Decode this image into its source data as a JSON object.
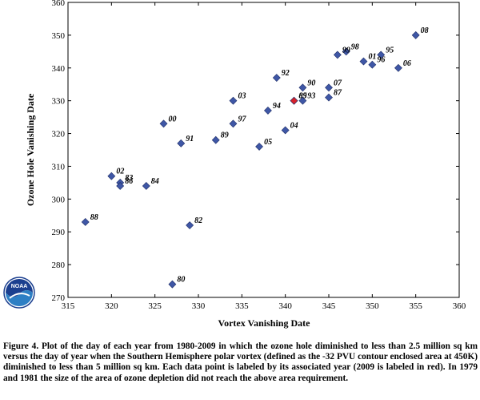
{
  "chart_data": {
    "type": "scatter",
    "xlabel": "Vortex Vanishing Date",
    "ylabel": "Ozone Hole Vanishing Date",
    "xlim": [
      315,
      360
    ],
    "ylim": [
      270,
      360
    ],
    "x_ticks": [
      "315",
      "320",
      "325",
      "330",
      "335",
      "340",
      "345",
      "350",
      "355",
      "360"
    ],
    "y_ticks": [
      "270",
      "280",
      "290",
      "300",
      "310",
      "320",
      "330",
      "340",
      "350",
      "360"
    ],
    "grid": false,
    "marker_color": "#3f57a6",
    "highlight_color": "#d8212a",
    "points": [
      {
        "label": "80",
        "x": 327,
        "y": 274
      },
      {
        "label": "82",
        "x": 329,
        "y": 292
      },
      {
        "label": "83",
        "x": 321,
        "y": 305
      },
      {
        "label": "84",
        "x": 324,
        "y": 304
      },
      {
        "label": "85",
        "x": 341,
        "y": 330
      },
      {
        "label": "86",
        "x": 321,
        "y": 304
      },
      {
        "label": "87",
        "x": 345,
        "y": 331
      },
      {
        "label": "88",
        "x": 317,
        "y": 293
      },
      {
        "label": "89",
        "x": 332,
        "y": 318
      },
      {
        "label": "90",
        "x": 342,
        "y": 334
      },
      {
        "label": "91",
        "x": 328,
        "y": 317
      },
      {
        "label": "92",
        "x": 339,
        "y": 337
      },
      {
        "label": "93",
        "x": 342,
        "y": 330
      },
      {
        "label": "94",
        "x": 338,
        "y": 327
      },
      {
        "label": "95",
        "x": 351,
        "y": 344
      },
      {
        "label": "96",
        "x": 350,
        "y": 341
      },
      {
        "label": "97",
        "x": 334,
        "y": 323
      },
      {
        "label": "98",
        "x": 347,
        "y": 345
      },
      {
        "label": "99",
        "x": 346,
        "y": 344
      },
      {
        "label": "00",
        "x": 326,
        "y": 323
      },
      {
        "label": "01",
        "x": 349,
        "y": 342
      },
      {
        "label": "02",
        "x": 320,
        "y": 307
      },
      {
        "label": "03",
        "x": 334,
        "y": 330
      },
      {
        "label": "04",
        "x": 340,
        "y": 321
      },
      {
        "label": "05",
        "x": 337,
        "y": 316
      },
      {
        "label": "06",
        "x": 353,
        "y": 340
      },
      {
        "label": "07",
        "x": 345,
        "y": 334
      },
      {
        "label": "08",
        "x": 355,
        "y": 350
      },
      {
        "label": "09",
        "x": 341,
        "y": 330,
        "highlight": true
      }
    ]
  },
  "logo": {
    "text": "NOAA"
  },
  "caption": "Figure 4. Plot of the day of each year from 1980-2009 in which the ozone hole diminished to less than 2.5 million sq km versus the day of year when the Southern Hemisphere polar vortex (defined as the -32 PVU contour enclosed area at 450K) diminished to less than 5 million sq km. Each data point is labeled by its associated year (2009 is labeled in red). In 1979 and 1981 the size of the area of ozone depletion did not reach the above area requirement."
}
